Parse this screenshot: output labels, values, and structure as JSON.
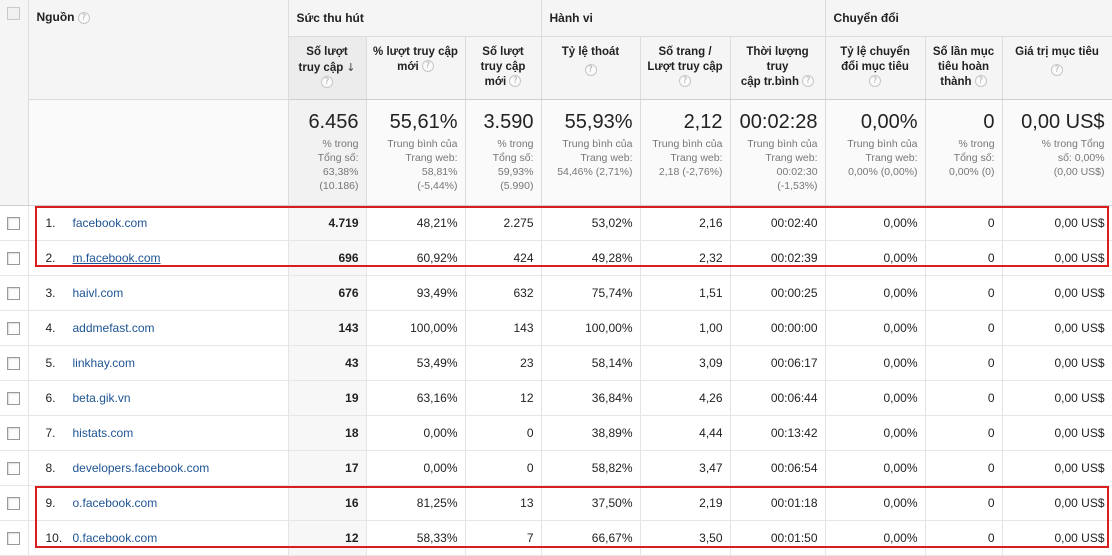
{
  "groups": {
    "attraction": "Sức thu hút",
    "behavior": "Hành vi",
    "conversion": "Chuyển đổi"
  },
  "columns": {
    "source": "Nguồn",
    "visits": [
      "Số lượt",
      "truy cập"
    ],
    "new_visits_pct": [
      "% lượt truy cập",
      "mới"
    ],
    "new_visits": [
      "Số lượt",
      "truy cập",
      "mới"
    ],
    "bounce_rate": [
      "Tỷ lệ thoát"
    ],
    "pages_per_visit": [
      "Số trang /",
      "Lượt truy cập"
    ],
    "avg_duration": [
      "Thời lượng truy",
      "cập tr.bình"
    ],
    "conv_rate": [
      "Tỷ lệ chuyển",
      "đổi mục tiêu"
    ],
    "completions": [
      "Số lần mục",
      "tiêu hoàn",
      "thành"
    ],
    "goal_value": [
      "Giá trị mục tiêu"
    ]
  },
  "summary": {
    "visits": {
      "value": "6.456",
      "lines": [
        "% trong",
        "Tổng số:",
        "63,38%",
        "(10.186)"
      ]
    },
    "new_visits_pct": {
      "value": "55,61%",
      "lines": [
        "Trung bình của",
        "Trang web:",
        "58,81%",
        "(-5,44%)"
      ]
    },
    "new_visits": {
      "value": "3.590",
      "lines": [
        "% trong",
        "Tổng số:",
        "59,93%",
        "(5.990)"
      ]
    },
    "bounce_rate": {
      "value": "55,93%",
      "lines": [
        "Trung bình của",
        "Trang web:",
        "54,46% (2,71%)"
      ]
    },
    "pages_per_visit": {
      "value": "2,12",
      "lines": [
        "Trung bình của",
        "Trang web:",
        "2,18 (-2,76%)"
      ]
    },
    "avg_duration": {
      "value": "00:02:28",
      "lines": [
        "Trung bình của",
        "Trang web:",
        "00:02:30",
        "(-1,53%)"
      ]
    },
    "conv_rate": {
      "value": "0,00%",
      "lines": [
        "Trung bình của",
        "Trang web:",
        "0,00% (0,00%)"
      ]
    },
    "completions": {
      "value": "0",
      "lines": [
        "% trong",
        "Tổng số:",
        "0,00% (0)"
      ]
    },
    "goal_value": {
      "value": "0,00 US$",
      "lines": [
        "% trong Tổng",
        "số: 0,00%",
        "(0,00 US$)"
      ]
    }
  },
  "rows": [
    {
      "rank": "1.",
      "source": "facebook.com",
      "visits": "4.719",
      "new_pct": "48,21%",
      "new_visits": "2.275",
      "bounce": "53,02%",
      "pages": "2,16",
      "duration": "00:02:40",
      "conv": "0,00%",
      "completions": "0",
      "value": "0,00 US$"
    },
    {
      "rank": "2.",
      "source": "m.facebook.com",
      "visits": "696",
      "new_pct": "60,92%",
      "new_visits": "424",
      "bounce": "49,28%",
      "pages": "2,32",
      "duration": "00:02:39",
      "conv": "0,00%",
      "completions": "0",
      "value": "0,00 US$"
    },
    {
      "rank": "3.",
      "source": "haivl.com",
      "visits": "676",
      "new_pct": "93,49%",
      "new_visits": "632",
      "bounce": "75,74%",
      "pages": "1,51",
      "duration": "00:00:25",
      "conv": "0,00%",
      "completions": "0",
      "value": "0,00 US$"
    },
    {
      "rank": "4.",
      "source": "addmefast.com",
      "visits": "143",
      "new_pct": "100,00%",
      "new_visits": "143",
      "bounce": "100,00%",
      "pages": "1,00",
      "duration": "00:00:00",
      "conv": "0,00%",
      "completions": "0",
      "value": "0,00 US$"
    },
    {
      "rank": "5.",
      "source": "linkhay.com",
      "visits": "43",
      "new_pct": "53,49%",
      "new_visits": "23",
      "bounce": "58,14%",
      "pages": "3,09",
      "duration": "00:06:17",
      "conv": "0,00%",
      "completions": "0",
      "value": "0,00 US$"
    },
    {
      "rank": "6.",
      "source": "beta.gik.vn",
      "visits": "19",
      "new_pct": "63,16%",
      "new_visits": "12",
      "bounce": "36,84%",
      "pages": "4,26",
      "duration": "00:06:44",
      "conv": "0,00%",
      "completions": "0",
      "value": "0,00 US$"
    },
    {
      "rank": "7.",
      "source": "histats.com",
      "visits": "18",
      "new_pct": "0,00%",
      "new_visits": "0",
      "bounce": "38,89%",
      "pages": "4,44",
      "duration": "00:13:42",
      "conv": "0,00%",
      "completions": "0",
      "value": "0,00 US$"
    },
    {
      "rank": "8.",
      "source": "developers.facebook.com",
      "visits": "17",
      "new_pct": "0,00%",
      "new_visits": "0",
      "bounce": "58,82%",
      "pages": "3,47",
      "duration": "00:06:54",
      "conv": "0,00%",
      "completions": "0",
      "value": "0,00 US$"
    },
    {
      "rank": "9.",
      "source": "o.facebook.com",
      "visits": "16",
      "new_pct": "81,25%",
      "new_visits": "13",
      "bounce": "37,50%",
      "pages": "2,19",
      "duration": "00:01:18",
      "conv": "0,00%",
      "completions": "0",
      "value": "0,00 US$"
    },
    {
      "rank": "10.",
      "source": "0.facebook.com",
      "visits": "12",
      "new_pct": "58,33%",
      "new_visits": "7",
      "bounce": "66,67%",
      "pages": "3,50",
      "duration": "00:01:50",
      "conv": "0,00%",
      "completions": "0",
      "value": "0,00 US$"
    }
  ],
  "colors": {
    "link": "#1e5494",
    "highlight_box": "#d81e1e",
    "header_bg": "#f5f5f5"
  },
  "icons": {
    "help": "?",
    "sort": "↓"
  }
}
